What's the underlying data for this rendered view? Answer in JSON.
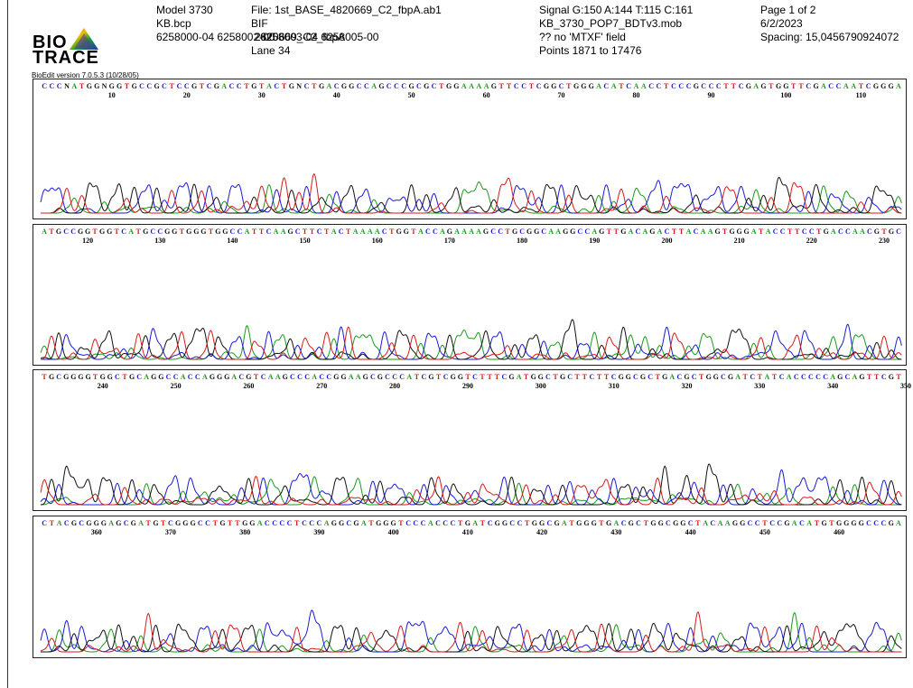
{
  "header": {
    "logo": {
      "line1": "BIO",
      "line2": "TRACE"
    },
    "version": "BioEdit version 7.0.5.3 (10/28/05)",
    "col1": [
      "Model 3730",
      "KB.bcp",
      "6258000-04 6258002-00"
    ],
    "col2": [
      "File: 1st_BASE_4820669_C2_fbpA.ab1",
      "BIF",
      "",
      "Lane 34"
    ],
    "col2_overlap": [
      "2820669_C2_fbpA",
      "6258003-04 6258005-00"
    ],
    "col3": [
      "Signal G:150 A:144 T:115 C:161",
      "KB_3730_POP7_BDTv3.mob",
      "?? no 'MTXF' field",
      "Points 1871 to 17476"
    ],
    "col4": [
      "Page 1 of 2",
      "6/2/2023",
      "Spacing: 15,0456790924072"
    ]
  },
  "colors": {
    "A": "#1a9a1a",
    "C": "#1a1ad6",
    "G": "#111111",
    "T": "#d61a1a"
  },
  "panels": [
    {
      "sequence": "CCCNATGGNGGTGCCGCTCCGTCGACCTGTACTGNCTGACGGCCAGCCCGCGCTGGAAAAGTTCCTCGGCTGGGACATCAACCTCCCGCCCTTCGAGTGGTTCGACCAATCGGGA",
      "ticks": [
        "10",
        "20",
        "30",
        "40",
        "50",
        "60",
        "70",
        "80",
        "90",
        "100",
        "110"
      ]
    },
    {
      "sequence": "ATGCCGGTGGTCATGCCGGTGGGTGGCCATTCAAGCTTCTACTAAAACTGGTACCAGAAAAGCCTGCGGCAAGGCCAGTTGACAGACTTACAAGTGGGATACCTTCCTGACCAACGTGC",
      "ticks": [
        "120",
        "130",
        "140",
        "150",
        "160",
        "170",
        "180",
        "190",
        "200",
        "210",
        "220",
        "230"
      ]
    },
    {
      "sequence": "TGCGGGGTGGCTGCAGGCCACCAGGGACGTCAAGCCCACCGGAAGCGCCCATCGTCGGTCTTTCGATGGCTGCTTCTTCGGCGCTGACGCTGGCGATCTATCACCCCCAGCAGTTCGT",
      "ticks": [
        "240",
        "250",
        "260",
        "270",
        "280",
        "290",
        "300",
        "310",
        "320",
        "330",
        "340",
        "350"
      ]
    },
    {
      "sequence": "CTACGCGGGAGCGATGTCGGGCCTGTTGGACCCCTCCCAGGCGATGGGTCCCACCCTGATCGGCCTGGCGATGGGTGACGCTGGCGGCTACAAGGCCTCCGACATGTGGGGCCCGA",
      "ticks": [
        "360",
        "370",
        "380",
        "390",
        "400",
        "410",
        "420",
        "430",
        "440",
        "450",
        "460"
      ]
    }
  ]
}
